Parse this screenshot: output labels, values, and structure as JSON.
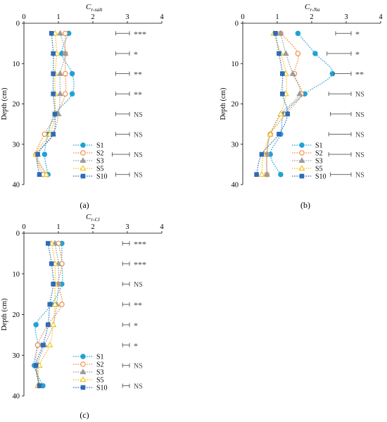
{
  "colors": {
    "S1": "#1fa2d6",
    "S2": "#f08a3c",
    "S3": "#9c9c9c",
    "S5": "#f2c318",
    "S10": "#2e6bb8",
    "errorbar": "#555555",
    "axis": "#000000",
    "sig": "#444444"
  },
  "panel_labels": [
    "(a)",
    "(b)",
    "(c)"
  ],
  "chart_data": [
    {
      "type": "line",
      "title": "Cr-salt",
      "title_main": "C",
      "title_sub": "r-salt",
      "ylabel": "Depth (cm)",
      "xlim": [
        0,
        4
      ],
      "ylim": [
        0,
        40
      ],
      "y_reversed": true,
      "xticks": [
        "0",
        "1",
        "2",
        "3",
        "4"
      ],
      "yticks": [
        "0",
        "10",
        "20",
        "30",
        "40"
      ],
      "y": [
        2.5,
        7.5,
        12.5,
        17.5,
        22.5,
        27.5,
        32.5,
        37.5
      ],
      "series": [
        {
          "name": "S1",
          "marker": "circle-filled",
          "values": [
            1.3,
            1.1,
            1.4,
            1.4,
            0.9,
            0.7,
            0.6,
            0.7
          ]
        },
        {
          "name": "S2",
          "marker": "circle-open",
          "values": [
            1.2,
            1.2,
            1.2,
            1.2,
            0.95,
            0.6,
            0.35,
            0.55
          ]
        },
        {
          "name": "S3",
          "marker": "triangle-filled",
          "values": [
            1.05,
            1.2,
            1.05,
            1.05,
            1.0,
            0.85,
            0.4,
            0.65
          ]
        },
        {
          "name": "S5",
          "marker": "triangle-open",
          "values": [
            0.9,
            0.95,
            0.9,
            0.9,
            0.9,
            0.75,
            0.35,
            0.65
          ]
        },
        {
          "name": "S10",
          "marker": "square-filled",
          "values": [
            0.8,
            0.85,
            0.85,
            0.85,
            0.9,
            0.85,
            0.4,
            0.45
          ]
        }
      ],
      "legend": {
        "placement": "bottom-center",
        "entries": [
          "S1",
          "S2",
          "S3",
          "S5",
          "S10"
        ]
      },
      "error_bars": [
        0.4,
        0.4,
        0.4,
        0.4,
        0.4,
        0.4,
        0.5,
        0.4
      ],
      "significance": [
        "***",
        "*",
        "**",
        "**",
        "NS",
        "NS",
        "NS",
        "NS"
      ]
    },
    {
      "type": "line",
      "title": "Cr-Na",
      "title_main": "C",
      "title_sub": "r-Na",
      "ylabel": "Depth (cm)",
      "xlim": [
        0,
        4
      ],
      "ylim": [
        0,
        40
      ],
      "y_reversed": true,
      "xticks": [
        "0",
        "1",
        "2",
        "3",
        "4"
      ],
      "yticks": [
        "0",
        "10",
        "20",
        "30",
        "40"
      ],
      "y": [
        2.5,
        7.5,
        12.5,
        17.5,
        22.5,
        27.5,
        32.5,
        37.5
      ],
      "series": [
        {
          "name": "S1",
          "marker": "circle-filled",
          "values": [
            1.6,
            2.1,
            2.6,
            1.8,
            1.2,
            1.1,
            0.8,
            1.1
          ]
        },
        {
          "name": "S2",
          "marker": "circle-open",
          "values": [
            1.1,
            1.6,
            1.5,
            1.7,
            1.25,
            0.8,
            0.7,
            0.7
          ]
        },
        {
          "name": "S3",
          "marker": "triangle-filled",
          "values": [
            1.1,
            1.25,
            1.45,
            1.65,
            1.1,
            0.8,
            0.7,
            0.7
          ]
        },
        {
          "name": "S5",
          "marker": "triangle-open",
          "values": [
            0.9,
            1.1,
            1.25,
            1.25,
            1.1,
            0.8,
            0.6,
            0.55
          ]
        },
        {
          "name": "S10",
          "marker": "square-filled",
          "values": [
            0.95,
            1.05,
            1.15,
            1.15,
            1.3,
            1.05,
            0.55,
            0.4
          ]
        }
      ],
      "legend": {
        "placement": "bottom-center",
        "entries": [
          "S1",
          "S2",
          "S3",
          "S5",
          "S10"
        ]
      },
      "error_bars": [
        0.45,
        0.7,
        0.5,
        0.65,
        0.6,
        0.65,
        0.65,
        0.6
      ],
      "significance": [
        "*",
        "*",
        "**",
        "NS",
        "NS",
        "NS",
        "NS",
        "NS"
      ]
    },
    {
      "type": "line",
      "title": "Cr-Cl",
      "title_main": "C",
      "title_sub": "r-Cl",
      "ylabel": "Depth (cm)",
      "xlim": [
        0,
        4
      ],
      "ylim": [
        0,
        40
      ],
      "y_reversed": true,
      "xticks": [
        "0",
        "1",
        "2",
        "3",
        "4"
      ],
      "yticks": [
        "0",
        "10",
        "20",
        "30",
        "40"
      ],
      "y": [
        2.5,
        7.5,
        12.5,
        17.5,
        22.5,
        27.5,
        32.5,
        37.5
      ],
      "series": [
        {
          "name": "S1",
          "marker": "circle-filled",
          "values": [
            1.1,
            1.1,
            1.1,
            0.8,
            0.35,
            0.4,
            0.3,
            0.55
          ]
        },
        {
          "name": "S2",
          "marker": "circle-open",
          "values": [
            1.0,
            1.1,
            1.0,
            1.1,
            0.7,
            0.4,
            0.35,
            0.45
          ]
        },
        {
          "name": "S3",
          "marker": "triangle-filled",
          "values": [
            0.9,
            1.0,
            1.0,
            0.95,
            0.85,
            0.6,
            0.4,
            0.45
          ]
        },
        {
          "name": "S5",
          "marker": "triangle-open",
          "values": [
            0.8,
            0.9,
            0.9,
            0.9,
            0.85,
            0.75,
            0.45,
            0.4
          ]
        },
        {
          "name": "S10",
          "marker": "square-filled",
          "values": [
            0.7,
            0.8,
            0.85,
            0.75,
            0.7,
            0.55,
            0.35,
            0.45
          ]
        }
      ],
      "legend": {
        "placement": "bottom-center",
        "entries": [
          "S1",
          "S2",
          "S3",
          "S5",
          "S10"
        ]
      },
      "error_bars": [
        0.2,
        0.2,
        0.2,
        0.2,
        0.2,
        0.2,
        0.2,
        0.2
      ],
      "significance": [
        "***",
        "***",
        "NS",
        "**",
        "*",
        "*",
        "NS",
        "NS"
      ]
    }
  ]
}
